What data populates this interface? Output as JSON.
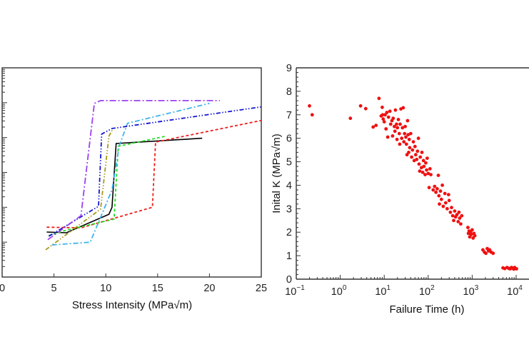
{
  "chart_data": [
    {
      "type": "line",
      "title": "",
      "xlabel": "Stress Intensity (MPa√m)",
      "ylabel": "",
      "xlim": [
        0,
        25
      ],
      "ylim_decades": [
        0,
        6
      ],
      "yscale": "log",
      "y_note": "y values given in decades above the axis bottom; y tick labels are not visible (cropped)",
      "xticks": [
        0,
        5,
        10,
        15,
        20,
        25
      ],
      "xtick_labels": [
        "0",
        "5",
        "10",
        "15",
        "20",
        "25"
      ],
      "grid": false,
      "legend": null,
      "series": [
        {
          "name": "black-solid",
          "color": "#000000",
          "dash": "solid",
          "points": [
            [
              4.3,
              1.29
            ],
            [
              6.2,
              1.27
            ],
            [
              10.3,
              1.8
            ],
            [
              10.6,
              2.0
            ],
            [
              11.0,
              3.83
            ],
            [
              19.3,
              3.98
            ]
          ]
        },
        {
          "name": "red-dashed",
          "color": "#ee1c1c",
          "dash": "dashed",
          "points": [
            [
              4.3,
              1.43
            ],
            [
              7.6,
              1.41
            ],
            [
              14.5,
              2.0
            ],
            [
              14.8,
              3.87
            ],
            [
              25,
              4.49
            ]
          ]
        },
        {
          "name": "green-dashed",
          "color": "#22dd22",
          "dash": "dashed",
          "points": [
            [
              4.5,
              1.19
            ],
            [
              6.0,
              1.33
            ],
            [
              10.8,
              1.66
            ],
            [
              11.2,
              3.75
            ],
            [
              15.8,
              4.04
            ]
          ]
        },
        {
          "name": "cyan-dashdot",
          "color": "#3fb4ea",
          "dash": "dashdot",
          "points": [
            [
              4.8,
              0.92
            ],
            [
              8.5,
              1.0
            ],
            [
              10.6,
              2.5
            ],
            [
              11.3,
              3.77
            ],
            [
              12.1,
              4.41
            ],
            [
              20.0,
              4.98
            ]
          ]
        },
        {
          "name": "blue-dashdotdot",
          "color": "#1515d0",
          "dash": "dashdotdot",
          "points": [
            [
              4.5,
              1.17
            ],
            [
              9.3,
              2.03
            ],
            [
              9.6,
              4.1
            ],
            [
              10.6,
              4.26
            ],
            [
              25,
              4.88
            ]
          ]
        },
        {
          "name": "olive-dashdotdot",
          "color": "#a69a1e",
          "dash": "dashdotdot",
          "points": [
            [
              4.2,
              0.78
            ],
            [
              9.5,
              1.95
            ],
            [
              10.3,
              4.04
            ],
            [
              10.7,
              4.26
            ]
          ]
        },
        {
          "name": "purple-dashdot",
          "color": "#9b40f0",
          "dash": "longdashdot",
          "points": [
            [
              4.4,
              1.07
            ],
            [
              7.6,
              1.76
            ],
            [
              8.9,
              4.98
            ],
            [
              9.5,
              5.06
            ],
            [
              21.0,
              5.06
            ]
          ]
        }
      ]
    },
    {
      "type": "scatter",
      "title": "",
      "xlabel": "Failure Time (h)",
      "ylabel": "Inital K (MPa√m)",
      "xscale": "log",
      "xlim": [
        0.1,
        10000
      ],
      "ylim": [
        0,
        9
      ],
      "xticks": [
        0.1,
        1,
        10,
        100,
        1000,
        10000
      ],
      "xtick_labels": [
        {
          "base": "10",
          "exp": "−1"
        },
        {
          "base": "10",
          "exp": "0"
        },
        {
          "base": "10",
          "exp": "1"
        },
        {
          "base": "10",
          "exp": "2"
        },
        {
          "base": "10",
          "exp": "3"
        },
        {
          "base": "10",
          "exp": "4"
        }
      ],
      "yticks": [
        0,
        1,
        2,
        3,
        4,
        5,
        6,
        7,
        8,
        9
      ],
      "ytick_labels": [
        "0",
        "1",
        "2",
        "3",
        "4",
        "5",
        "6",
        "7",
        "8",
        "9"
      ],
      "grid": false,
      "legend": null,
      "marker_color": "#ee1111",
      "points": [
        [
          0.2,
          7.38
        ],
        [
          0.23,
          7.0
        ],
        [
          1.7,
          6.85
        ],
        [
          2.9,
          7.38
        ],
        [
          3.8,
          7.26
        ],
        [
          5.6,
          6.48
        ],
        [
          6.5,
          6.55
        ],
        [
          7.6,
          7.7
        ],
        [
          8.5,
          6.95
        ],
        [
          9.0,
          7.32
        ],
        [
          9.2,
          7.0
        ],
        [
          9.5,
          6.82
        ],
        [
          10.0,
          6.7
        ],
        [
          10.5,
          7.0
        ],
        [
          11.0,
          6.4
        ],
        [
          11.5,
          7.1
        ],
        [
          12.0,
          6.05
        ],
        [
          12.5,
          6.9
        ],
        [
          13.5,
          7.15
        ],
        [
          14.0,
          6.6
        ],
        [
          15.0,
          6.75
        ],
        [
          15.5,
          6.1
        ],
        [
          16.0,
          6.85
        ],
        [
          17.0,
          6.5
        ],
        [
          17.5,
          6.3
        ],
        [
          18.0,
          7.2
        ],
        [
          19.0,
          6.6
        ],
        [
          19.5,
          5.95
        ],
        [
          20.0,
          6.45
        ],
        [
          21.0,
          6.8
        ],
        [
          22.0,
          6.2
        ],
        [
          22.5,
          5.75
        ],
        [
          23.0,
          6.6
        ],
        [
          24.0,
          7.25
        ],
        [
          25.0,
          6.0
        ],
        [
          26.0,
          6.45
        ],
        [
          27.0,
          7.3
        ],
        [
          28.0,
          5.85
        ],
        [
          29.0,
          6.2
        ],
        [
          30.0,
          6.5
        ],
        [
          31.0,
          6.05
        ],
        [
          32.0,
          5.75
        ],
        [
          33.0,
          5.3
        ],
        [
          34.0,
          6.75
        ],
        [
          35.0,
          6.15
        ],
        [
          36.0,
          5.4
        ],
        [
          37.0,
          5.95
        ],
        [
          38.0,
          5.6
        ],
        [
          40.0,
          6.2
        ],
        [
          42.0,
          5.2
        ],
        [
          44.0,
          5.5
        ],
        [
          46.0,
          5.85
        ],
        [
          48.0,
          5.05
        ],
        [
          50.0,
          5.65
        ],
        [
          52.0,
          5.3
        ],
        [
          55.0,
          5.1
        ],
        [
          57.0,
          5.45
        ],
        [
          60.0,
          6.0
        ],
        [
          62.0,
          4.9
        ],
        [
          64.0,
          4.6
        ],
        [
          66.0,
          5.2
        ],
        [
          70.0,
          4.75
        ],
        [
          72.0,
          5.4
        ],
        [
          75.0,
          4.55
        ],
        [
          78.0,
          5.05
        ],
        [
          80.0,
          4.8
        ],
        [
          85.0,
          4.45
        ],
        [
          88.0,
          4.95
        ],
        [
          92.0,
          4.65
        ],
        [
          95.0,
          5.15
        ],
        [
          100.0,
          4.5
        ],
        [
          105.0,
          3.9
        ],
        [
          110.0,
          4.7
        ],
        [
          115.0,
          4.45
        ],
        [
          130.0,
          3.8
        ],
        [
          140.0,
          3.95
        ],
        [
          150.0,
          3.7
        ],
        [
          160.0,
          3.85
        ],
        [
          170.0,
          4.42
        ],
        [
          175.0,
          3.55
        ],
        [
          180.0,
          3.2
        ],
        [
          190.0,
          3.75
        ],
        [
          200.0,
          3.4
        ],
        [
          210.0,
          4.0
        ],
        [
          220.0,
          3.1
        ],
        [
          240.0,
          3.65
        ],
        [
          250.0,
          3.25
        ],
        [
          270.0,
          3.0
        ],
        [
          290.0,
          3.6
        ],
        [
          300.0,
          3.35
        ],
        [
          320.0,
          2.85
        ],
        [
          340.0,
          3.05
        ],
        [
          360.0,
          2.7
        ],
        [
          380.0,
          2.5
        ],
        [
          400.0,
          2.9
        ],
        [
          420.0,
          2.65
        ],
        [
          450.0,
          2.75
        ],
        [
          480.0,
          2.45
        ],
        [
          500.0,
          2.85
        ],
        [
          520.0,
          2.6
        ],
        [
          550.0,
          2.35
        ],
        [
          580.0,
          2.7
        ],
        [
          800.0,
          2.2
        ],
        [
          820.0,
          1.95
        ],
        [
          850.0,
          2.05
        ],
        [
          880.0,
          1.8
        ],
        [
          920.0,
          2.0
        ],
        [
          950.0,
          1.9
        ],
        [
          1000.0,
          2.1
        ],
        [
          1050.0,
          1.75
        ],
        [
          1100.0,
          1.95
        ],
        [
          1150.0,
          1.85
        ],
        [
          1750.0,
          1.25
        ],
        [
          1900.0,
          1.15
        ],
        [
          2050.0,
          1.1
        ],
        [
          2200.0,
          1.3
        ],
        [
          2350.0,
          1.2
        ],
        [
          2500.0,
          1.25
        ],
        [
          2700.0,
          1.15
        ],
        [
          3000.0,
          1.1
        ],
        [
          5000.0,
          0.48
        ],
        [
          5500.0,
          0.45
        ],
        [
          6200.0,
          0.5
        ],
        [
          6800.0,
          0.46
        ],
        [
          7300.0,
          0.44
        ],
        [
          7800.0,
          0.5
        ],
        [
          8300.0,
          0.47
        ],
        [
          8800.0,
          0.43
        ],
        [
          9200.0,
          0.5
        ],
        [
          9600.0,
          0.46
        ],
        [
          10200.0,
          0.44
        ]
      ]
    }
  ]
}
